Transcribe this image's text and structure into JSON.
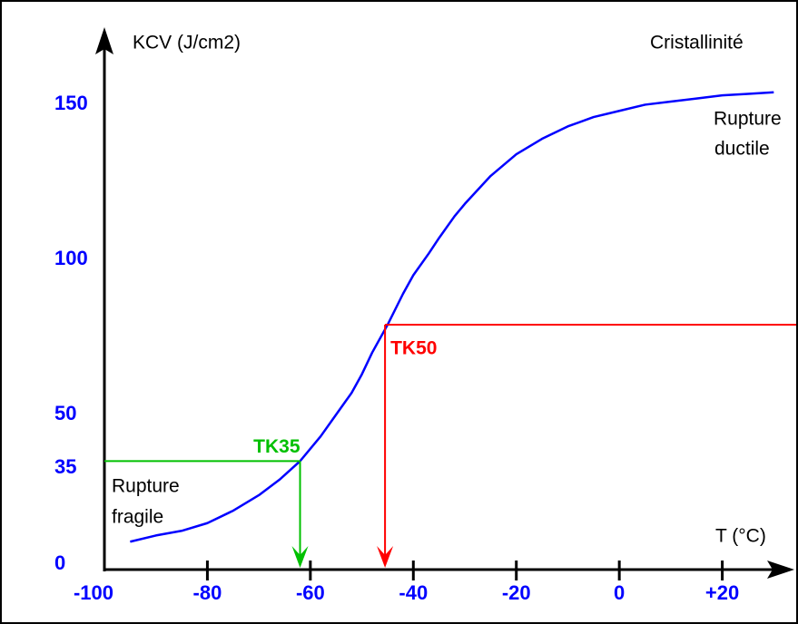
{
  "chart_data": {
    "type": "line",
    "y_label": "KCV (J/cm2)",
    "x_label": "T (°C)",
    "annotations": [
      "Cristallinité",
      "Rupture",
      "ductile",
      "Rupture",
      "fragile"
    ],
    "xlim": [
      -100,
      34
    ],
    "ylim": [
      0,
      175
    ],
    "xticks": [
      -100,
      -80,
      -60,
      -40,
      -20,
      0,
      {
        "value": 20,
        "label": "+20"
      }
    ],
    "yticks": [
      0,
      35,
      50,
      100,
      150
    ],
    "series": [
      {
        "color": "#0000ff",
        "x": [
          -95,
          -90,
          -85,
          -80,
          -75,
          -70,
          -66,
          -62,
          -58,
          -55,
          -52,
          -50,
          -48,
          -45,
          -42,
          -40,
          -37,
          -35,
          -32,
          -30,
          -25,
          -20,
          -15,
          -10,
          -5,
          0,
          5,
          10,
          15,
          20,
          25,
          30
        ],
        "values": [
          9,
          11,
          12.5,
          15,
          19,
          24,
          29,
          35,
          43,
          50,
          57,
          63,
          70,
          79,
          89,
          95,
          102,
          107,
          114,
          118,
          127,
          134,
          139,
          143,
          146,
          148,
          150,
          151,
          152,
          153,
          153.5,
          154
        ]
      }
    ],
    "markers": [
      {
        "label": "TK35",
        "x": -62,
        "y": 35,
        "color": "#00c000",
        "side": "left"
      },
      {
        "label": "TK50",
        "x": -45.5,
        "y": 79,
        "color": "#ff0000",
        "side": "right"
      }
    ]
  }
}
